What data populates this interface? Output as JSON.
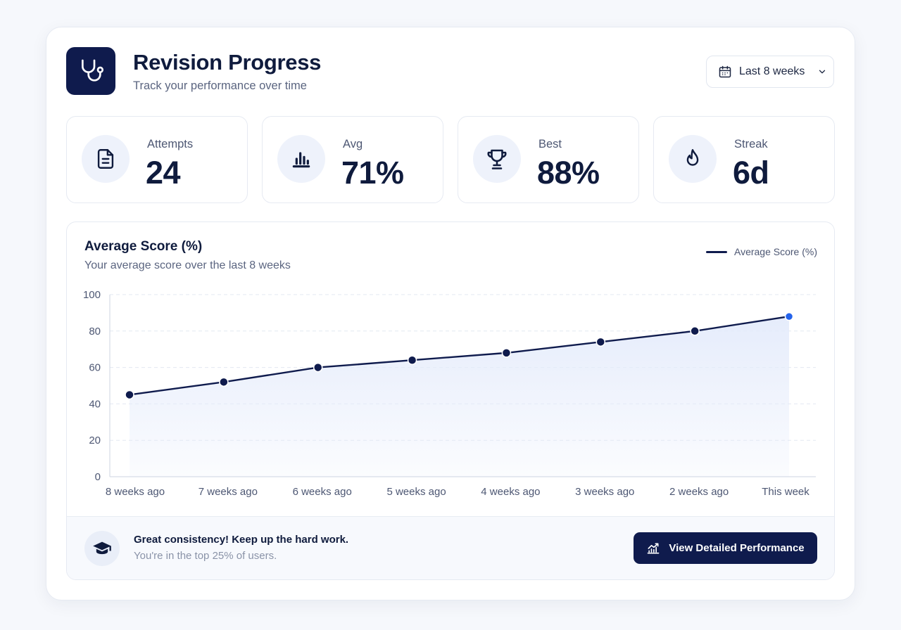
{
  "header": {
    "title": "Revision Progress",
    "subtitle": "Track your performance over time",
    "logo_icon": "stethoscope-icon",
    "range_selector": {
      "label": "Last 8 weeks",
      "icon": "calendar-icon"
    }
  },
  "stats": [
    {
      "label": "Attempts",
      "value": "24",
      "icon": "document-icon"
    },
    {
      "label": "Avg",
      "value": "71%",
      "icon": "bar-chart-icon"
    },
    {
      "label": "Best",
      "value": "88%",
      "icon": "trophy-icon"
    },
    {
      "label": "Streak",
      "value": "6d",
      "icon": "flame-icon"
    }
  ],
  "chart": {
    "title": "Average Score (%)",
    "subtitle": "Your average score over the last 8 weeks",
    "legend": "Average Score (%)"
  },
  "chart_data": {
    "type": "line",
    "categories": [
      "8 weeks ago",
      "7 weeks ago",
      "6 weeks ago",
      "5 weeks ago",
      "4 weeks ago",
      "3 weeks ago",
      "2 weeks ago",
      "This week"
    ],
    "series": [
      {
        "name": "Average Score (%)",
        "values": [
          45,
          52,
          60,
          64,
          68,
          74,
          80,
          88
        ]
      }
    ],
    "ylim": [
      0,
      100
    ],
    "yticks": [
      0,
      20,
      40,
      60,
      80,
      100
    ],
    "grid": true,
    "area_fill": true,
    "legend_position": "top-right",
    "colors": {
      "line": "#0f1b4d",
      "highlight_point": "#2563eb",
      "area": "#e4ebfb"
    }
  },
  "footer": {
    "icon": "graduation-cap-icon",
    "message": "Great consistency! Keep up the hard work.",
    "submessage": "You're in the top 25% of users.",
    "cta_label": "View Detailed Performance",
    "cta_icon": "trending-up-icon"
  },
  "colors": {
    "primary": "#0f1b4d",
    "accent": "#2563eb",
    "background": "#f6f8fc"
  }
}
